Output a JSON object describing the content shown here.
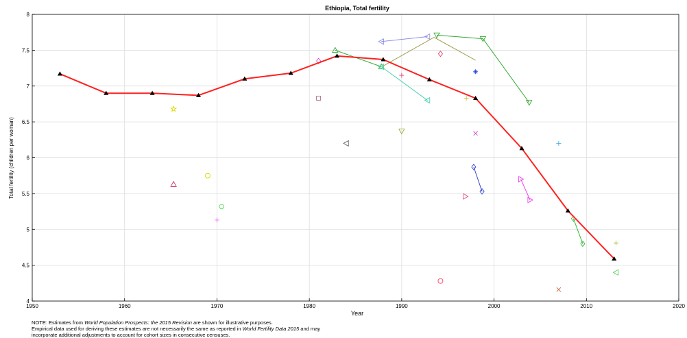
{
  "chart_data": {
    "type": "line",
    "title": "Ethiopia, Total fertility",
    "xlabel": "Year",
    "ylabel": "Total fertility (children per woman)",
    "xlim": [
      1950,
      2020
    ],
    "ylim": [
      4,
      8
    ],
    "xticks": [
      "1950",
      "1960",
      "1970",
      "1980",
      "1990",
      "2000",
      "2010",
      "2020"
    ],
    "yticks": [
      "4",
      "4.5",
      "5",
      "5.5",
      "6",
      "6.5",
      "7",
      "7.5",
      "8"
    ],
    "grid": true,
    "main_series": {
      "color": "#ff2020",
      "x": [
        1953,
        1958,
        1963,
        1968,
        1973,
        1978,
        1983,
        1988,
        1993,
        1998,
        2003,
        2008,
        2013
      ],
      "y": [
        7.17,
        6.9,
        6.9,
        6.87,
        7.1,
        7.18,
        7.42,
        7.37,
        7.09,
        6.83,
        6.13,
        5.26,
        4.59
      ]
    },
    "empirical_lines": [
      {
        "color": "#33aa33",
        "marker": "triangle-up",
        "x": [
          1982.8,
          1987.8
        ],
        "y": [
          7.5,
          7.27
        ]
      },
      {
        "color": "#48d1b0",
        "marker": "triangle-left",
        "x": [
          1987.8,
          1992.8
        ],
        "y": [
          7.27,
          6.8
        ]
      },
      {
        "color": "#9090e8",
        "marker": "triangle-left",
        "x": [
          1987.8,
          1992.8
        ],
        "y": [
          7.62,
          7.69
        ]
      },
      {
        "color": "#a0a050",
        "marker": "none",
        "x": [
          1988,
          1993.5,
          1998
        ],
        "y": [
          7.28,
          7.68,
          7.36
        ]
      },
      {
        "color": "#33aa33",
        "marker": "triangle-down",
        "x": [
          1993.8,
          1998.8,
          2003.8
        ],
        "y": [
          7.71,
          7.66,
          6.77
        ]
      },
      {
        "color": "#3344cc",
        "marker": "diamond",
        "x": [
          1997.8,
          1998.7
        ],
        "y": [
          5.87,
          5.53
        ]
      },
      {
        "color": "#ee44ee",
        "marker": "triangle-right",
        "x": [
          2002.9,
          2003.9
        ],
        "y": [
          5.7,
          5.41
        ]
      },
      {
        "color": "#33bb33",
        "marker": "diamond",
        "x": [
          2008.6,
          2009.6
        ],
        "y": [
          5.15,
          4.8
        ]
      }
    ],
    "empirical_points": [
      {
        "color": "#d8d800",
        "marker": "pentagram",
        "x": 1965.3,
        "y": 6.68
      },
      {
        "color": "#cc3366",
        "marker": "triangle-up",
        "x": 1965.3,
        "y": 5.63
      },
      {
        "color": "#d8d800",
        "marker": "circle",
        "x": 1969,
        "y": 5.75
      },
      {
        "color": "#ee44ee",
        "marker": "plus",
        "x": 1970,
        "y": 5.13
      },
      {
        "color": "#55dd55",
        "marker": "hexagram",
        "x": 1970.5,
        "y": 5.32
      },
      {
        "color": "#aa6688",
        "marker": "square",
        "x": 1981,
        "y": 6.83
      },
      {
        "color": "#dd44dd",
        "marker": "diamond",
        "x": 1981,
        "y": 7.35
      },
      {
        "color": "#666666",
        "marker": "triangle-left",
        "x": 1984,
        "y": 6.2
      },
      {
        "color": "#dd4477",
        "marker": "plus",
        "x": 1990,
        "y": 7.15
      },
      {
        "color": "#99aa33",
        "marker": "triangle-down",
        "x": 1990,
        "y": 6.37
      },
      {
        "color": "#ff3366",
        "marker": "circle",
        "x": 1994.2,
        "y": 4.28
      },
      {
        "color": "#dd4466",
        "marker": "diamond",
        "x": 1994.2,
        "y": 7.45
      },
      {
        "color": "#ee5599",
        "marker": "triangle-right",
        "x": 1996.9,
        "y": 5.46
      },
      {
        "color": "#ccbb44",
        "marker": "plus",
        "x": 1997,
        "y": 6.83
      },
      {
        "color": "#2244dd",
        "marker": "asterisk",
        "x": 1998,
        "y": 7.2
      },
      {
        "color": "#cc44cc",
        "marker": "x",
        "x": 1998,
        "y": 6.34
      },
      {
        "color": "#44aadd",
        "marker": "plus",
        "x": 2007,
        "y": 6.2
      },
      {
        "color": "#cc6633",
        "marker": "x",
        "x": 2007,
        "y": 4.16
      },
      {
        "color": "#aabb33",
        "marker": "plus",
        "x": 2013.2,
        "y": 4.81
      },
      {
        "color": "#55cc55",
        "marker": "triangle-left",
        "x": 2013.2,
        "y": 4.4
      }
    ]
  },
  "note": {
    "line1_prefix": "NOTE: Estimates from ",
    "line1_italic": "World Population Prospects: the 2015 Revision",
    "line1_suffix": " are shown for illustrative purposes.",
    "line2_prefix": "Empirical data used for deriving these estimates are not necessarily the same as reported in ",
    "line2_italic": "World Fertility Data 2015",
    "line2_suffix": " and may",
    "line3": "incorporate additional adjustments to account for cohort sizes in consecutive censuses."
  }
}
